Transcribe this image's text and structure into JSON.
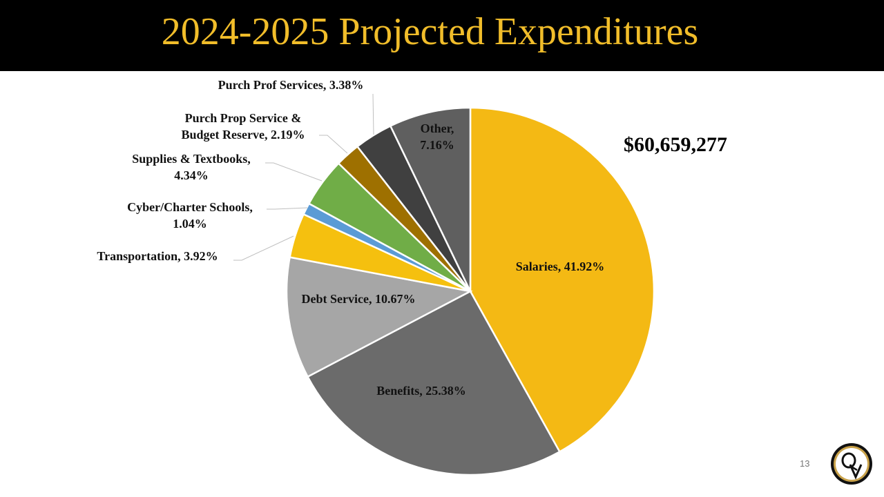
{
  "title": "2024-2025 Projected Expenditures",
  "total": "$60,659,277",
  "page_number": "13",
  "logo_text": "QV",
  "chart_data": {
    "type": "pie",
    "title": "2024-2025 Projected Expenditures",
    "start": "12 o'clock, clockwise",
    "slices": [
      {
        "label": "Salaries",
        "value": 41.92,
        "text": "Salaries, 41.92%",
        "color": "#F4B914"
      },
      {
        "label": "Benefits",
        "value": 25.38,
        "text": "Benefits, 25.38%",
        "color": "#6B6B6B"
      },
      {
        "label": "Debt Service",
        "value": 10.67,
        "text": "Debt Service, 10.67%",
        "color": "#A6A6A6"
      },
      {
        "label": "Transportation",
        "value": 3.92,
        "text": "Transportation, 3.92%",
        "color": "#F5C00F"
      },
      {
        "label": "Cyber/Charter Schools",
        "value": 1.04,
        "text": [
          "Cyber/Charter Schools,",
          "1.04%"
        ],
        "color": "#5B9BD5"
      },
      {
        "label": "Supplies & Textbooks",
        "value": 4.34,
        "text": [
          "Supplies & Textbooks,",
          "4.34%"
        ],
        "color": "#70AD47"
      },
      {
        "label": "Purch Prop Service & Budget Reserve",
        "value": 2.19,
        "text": [
          "Purch Prop Service &",
          "Budget Reserve, 2.19%"
        ],
        "color": "#9E7000"
      },
      {
        "label": "Purch Prof Services",
        "value": 3.38,
        "text": "Purch Prof Services, 3.38%",
        "color": "#404040"
      },
      {
        "label": "Other",
        "value": 7.16,
        "text": [
          "Other,",
          "7.16%"
        ],
        "color": "#5F5F5F"
      }
    ]
  }
}
